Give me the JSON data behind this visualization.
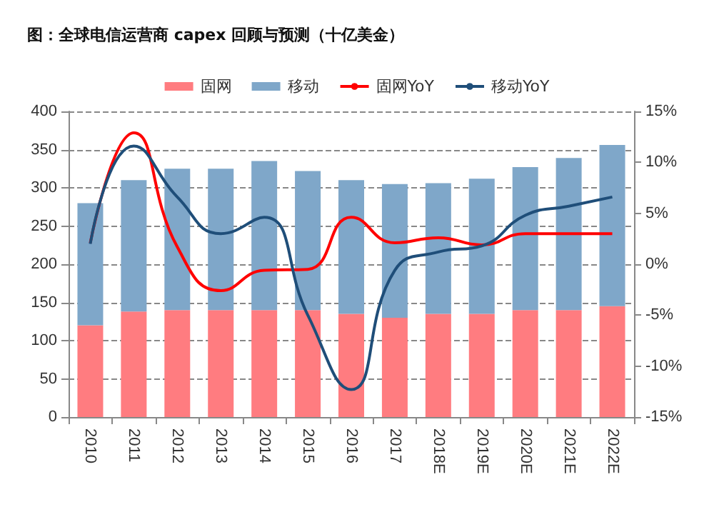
{
  "chart_data": {
    "type": "bar",
    "title": "图：全球电信运营商 capex 回顾与预测（十亿美金）",
    "categories": [
      "2010",
      "2011",
      "2012",
      "2013",
      "2014",
      "2015",
      "2016",
      "2017",
      "2018E",
      "2019E",
      "2020E",
      "2021E",
      "2022E"
    ],
    "stacked": true,
    "legend": "top",
    "grid": "y",
    "series": [
      {
        "name": "固网",
        "color": "#ff7c80",
        "values": [
          120,
          138,
          140,
          140,
          140,
          140,
          135,
          130,
          135,
          135,
          140,
          140,
          145
        ]
      },
      {
        "name": "移动",
        "color": "#7fa7c9",
        "values": [
          160,
          172,
          185,
          185,
          195,
          182,
          175,
          175,
          171,
          177,
          187,
          199,
          211
        ]
      },
      {
        "name": "固网YoY",
        "type": "line",
        "axis": "y2",
        "color": "#ff0000",
        "values": [
          2.1,
          12.9,
          1.7,
          -2.6,
          -0.6,
          -0.5,
          4.6,
          2.1,
          2.6,
          1.9,
          3.0,
          3.0,
          3.0
        ]
      },
      {
        "name": "移动YoY",
        "type": "line",
        "axis": "y2",
        "color": "#1f4e79",
        "values": [
          2.0,
          11.6,
          6.6,
          3.0,
          4.6,
          -5.0,
          -12.3,
          -0.6,
          1.2,
          1.8,
          4.8,
          5.7,
          6.6
        ]
      }
    ],
    "ylim": [
      0,
      400
    ],
    "yticks": [
      0,
      50,
      100,
      150,
      200,
      250,
      300,
      350,
      400
    ],
    "y2lim": [
      -15,
      15
    ],
    "y2ticks": [
      {
        "value": -15,
        "label": "-15%"
      },
      {
        "value": -10,
        "label": "-10%"
      },
      {
        "value": -5,
        "label": "-5%"
      },
      {
        "value": 0,
        "label": "0%"
      },
      {
        "value": 5,
        "label": "5%"
      },
      {
        "value": 10,
        "label": "10%"
      },
      {
        "value": 15,
        "label": "15%"
      }
    ]
  }
}
